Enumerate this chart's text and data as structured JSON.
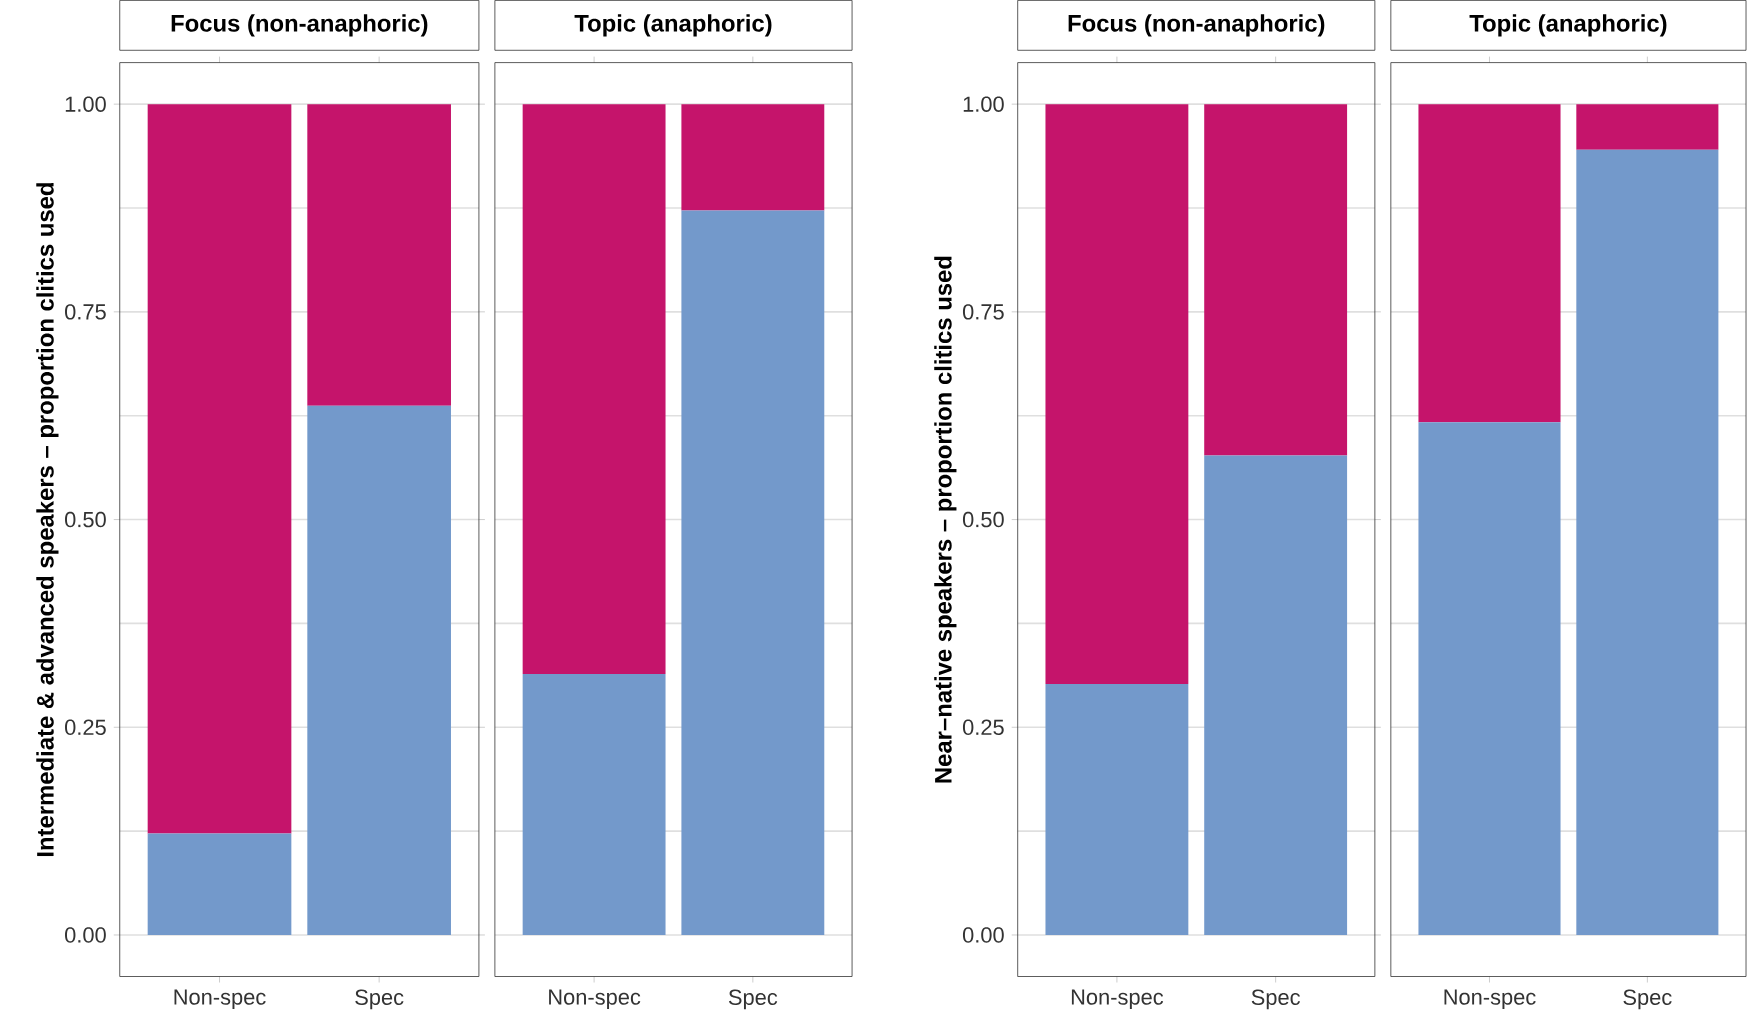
{
  "chart_data": [
    {
      "type": "bar",
      "title": "Focus (non-anaphoric)",
      "ylabel": "Intermediate & advanced speakers – proportion clitics used",
      "categories": [
        "Non-spec",
        "Spec"
      ],
      "stacked": true,
      "series": [
        {
          "color": "#7399cb",
          "values": [
            0.122,
            0.637
          ]
        },
        {
          "color": "#c5146b",
          "values": [
            0.878,
            0.363
          ]
        }
      ],
      "ylim": [
        -0.05,
        1.05
      ],
      "yticks": [
        {
          "value": 0,
          "label": "0.00"
        },
        {
          "value": 0.125,
          "label": null
        },
        0.25,
        {
          "value": 0.375,
          "label": null
        },
        {
          "value": 0.5,
          "label": "0.50"
        },
        {
          "value": 0.625,
          "label": null
        },
        0.75,
        {
          "value": 0.875,
          "label": null
        },
        {
          "value": 1,
          "label": "1.00"
        }
      ],
      "grid": "y"
    },
    {
      "type": "bar",
      "title": "Topic (anaphoric)",
      "categories": [
        "Non-spec",
        "Spec"
      ],
      "stacked": true,
      "series": [
        {
          "color": "#7399cb",
          "values": [
            0.314,
            0.872
          ]
        },
        {
          "color": "#c5146b",
          "values": [
            0.686,
            0.128
          ]
        }
      ],
      "ylim": [
        -0.05,
        1.05
      ],
      "yticks": [
        0,
        0.125,
        0.25,
        0.375,
        0.5,
        0.625,
        0.75,
        0.875,
        1
      ],
      "grid": "y",
      "tick_labels": "x"
    },
    {
      "type": "bar",
      "title": "Focus (non-anaphoric)",
      "ylabel": "Near–native speakers – proportion clitics used",
      "categories": [
        "Non-spec",
        "Spec"
      ],
      "stacked": true,
      "series": [
        {
          "color": "#7399cb",
          "values": [
            0.302,
            0.577
          ]
        },
        {
          "color": "#c5146b",
          "values": [
            0.698,
            0.423
          ]
        }
      ],
      "ylim": [
        -0.05,
        1.05
      ],
      "yticks": [
        {
          "value": 0,
          "label": "0.00"
        },
        {
          "value": 0.125,
          "label": null
        },
        0.25,
        {
          "value": 0.375,
          "label": null
        },
        {
          "value": 0.5,
          "label": "0.50"
        },
        {
          "value": 0.625,
          "label": null
        },
        0.75,
        {
          "value": 0.875,
          "label": null
        },
        {
          "value": 1,
          "label": "1.00"
        }
      ],
      "grid": "y"
    },
    {
      "type": "bar",
      "title": "Topic (anaphoric)",
      "categories": [
        "Non-spec",
        "Spec"
      ],
      "stacked": true,
      "series": [
        {
          "color": "#7399cb",
          "values": [
            0.617,
            0.945
          ]
        },
        {
          "color": "#c5146b",
          "values": [
            0.383,
            0.055
          ]
        }
      ],
      "ylim": [
        -0.05,
        1.05
      ],
      "yticks": [
        0,
        0.125,
        0.25,
        0.375,
        0.5,
        0.625,
        0.75,
        0.875,
        1
      ],
      "grid": "y",
      "tick_labels": "x"
    }
  ]
}
